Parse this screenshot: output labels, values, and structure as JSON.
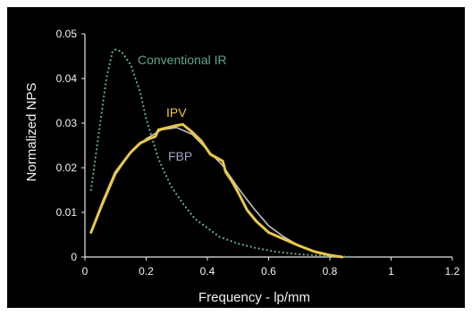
{
  "chart_data": {
    "type": "line",
    "xlabel": "Frequency  - lp/mm",
    "ylabel": "Normalized NPS",
    "xlim": [
      0,
      1.2
    ],
    "ylim": [
      0,
      0.05
    ],
    "x_ticks": [
      "0",
      "0.2",
      "0.4",
      "0.6",
      "0.8",
      "1",
      "1.2"
    ],
    "y_ticks": [
      "0",
      "0.01",
      "0.02",
      "0.03",
      "0.04",
      "0.05"
    ],
    "grid": false,
    "series": [
      {
        "name": "Conventional IR",
        "color": "#5fa58f",
        "style": "dotted",
        "points": [
          [
            0.02,
            0.015
          ],
          [
            0.05,
            0.03
          ],
          [
            0.07,
            0.04
          ],
          [
            0.09,
            0.046
          ],
          [
            0.1,
            0.0465
          ],
          [
            0.12,
            0.046
          ],
          [
            0.15,
            0.043
          ],
          [
            0.18,
            0.037
          ],
          [
            0.2,
            0.031
          ],
          [
            0.24,
            0.022
          ],
          [
            0.28,
            0.016
          ],
          [
            0.32,
            0.012
          ],
          [
            0.36,
            0.0085
          ],
          [
            0.4,
            0.0065
          ],
          [
            0.44,
            0.0045
          ],
          [
            0.5,
            0.003
          ],
          [
            0.56,
            0.002
          ],
          [
            0.62,
            0.0012
          ],
          [
            0.7,
            0.0006
          ],
          [
            0.8,
            0.0002
          ],
          [
            0.88,
            0.0
          ]
        ]
      },
      {
        "name": "FBP",
        "color": "#c0c0c0",
        "style": "solid",
        "points": [
          [
            0.02,
            0.0055
          ],
          [
            0.06,
            0.012
          ],
          [
            0.1,
            0.0185
          ],
          [
            0.15,
            0.0235
          ],
          [
            0.2,
            0.0265
          ],
          [
            0.25,
            0.0285
          ],
          [
            0.3,
            0.029
          ],
          [
            0.35,
            0.0275
          ],
          [
            0.4,
            0.024
          ],
          [
            0.45,
            0.0205
          ],
          [
            0.5,
            0.0155
          ],
          [
            0.55,
            0.011
          ],
          [
            0.6,
            0.007
          ],
          [
            0.65,
            0.0045
          ],
          [
            0.7,
            0.0025
          ],
          [
            0.75,
            0.0012
          ],
          [
            0.8,
            0.0005
          ],
          [
            0.84,
            0.0
          ]
        ]
      },
      {
        "name": "IPV",
        "color": "#e8c84a",
        "style": "solid",
        "points": [
          [
            0.02,
            0.0055
          ],
          [
            0.06,
            0.0125
          ],
          [
            0.1,
            0.019
          ],
          [
            0.15,
            0.0235
          ],
          [
            0.18,
            0.0255
          ],
          [
            0.21,
            0.0265
          ],
          [
            0.23,
            0.027
          ],
          [
            0.24,
            0.0285
          ],
          [
            0.27,
            0.029
          ],
          [
            0.3,
            0.0295
          ],
          [
            0.32,
            0.0297
          ],
          [
            0.35,
            0.028
          ],
          [
            0.38,
            0.026
          ],
          [
            0.41,
            0.023
          ],
          [
            0.45,
            0.0215
          ],
          [
            0.46,
            0.019
          ],
          [
            0.48,
            0.017
          ],
          [
            0.5,
            0.0145
          ],
          [
            0.53,
            0.0105
          ],
          [
            0.56,
            0.008
          ],
          [
            0.6,
            0.0055
          ],
          [
            0.65,
            0.004
          ],
          [
            0.7,
            0.0025
          ],
          [
            0.75,
            0.0012
          ],
          [
            0.8,
            0.0004
          ],
          [
            0.84,
            0.0
          ]
        ]
      }
    ]
  }
}
